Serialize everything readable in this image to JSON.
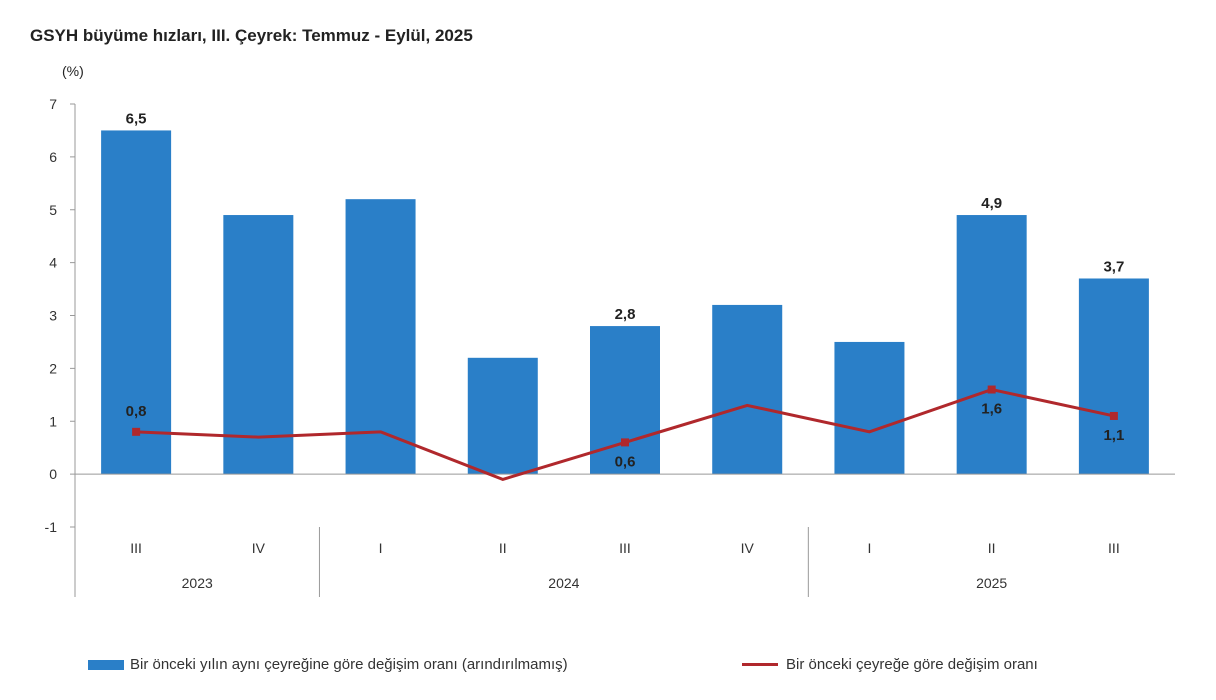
{
  "chart_data": {
    "type": "bar+line",
    "title": "GSYH büyüme hızları, III. Çeyrek: Temmuz - Eylül, 2025",
    "ylabel": "(%)",
    "ylim": [
      -1,
      7
    ],
    "yticks": [
      "-1",
      "0",
      "1",
      "2",
      "3",
      "4",
      "5",
      "6",
      "7"
    ],
    "categories": [
      "III",
      "IV",
      "I",
      "II",
      "III",
      "IV",
      "I",
      "II",
      "III"
    ],
    "year_groups": [
      {
        "label": "2023",
        "count": 2
      },
      {
        "label": "2024",
        "count": 4
      },
      {
        "label": "2025",
        "count": 3
      }
    ],
    "series": [
      {
        "name": "Bir önceki yılın aynı çeyreğine göre değişim oranı (arındırılmamış)",
        "type": "bar",
        "color": "#2a7fc8",
        "values": [
          6.5,
          4.9,
          5.2,
          2.2,
          2.8,
          3.2,
          2.5,
          4.9,
          3.7
        ],
        "labels": [
          "6,5",
          "",
          "",
          "",
          "2,8",
          "",
          "",
          "4,9",
          "3,7"
        ]
      },
      {
        "name": "Bir önceki çeyreğe göre değişim oranı",
        "type": "line",
        "color": "#b0282c",
        "values": [
          0.8,
          0.7,
          0.8,
          -0.1,
          0.6,
          1.3,
          0.8,
          1.6,
          1.1
        ],
        "labels": [
          "0,8",
          "",
          "",
          "",
          "0,6",
          "",
          "",
          "1,6",
          "1,1"
        ]
      }
    ],
    "grid": false,
    "legend": "bottom"
  }
}
